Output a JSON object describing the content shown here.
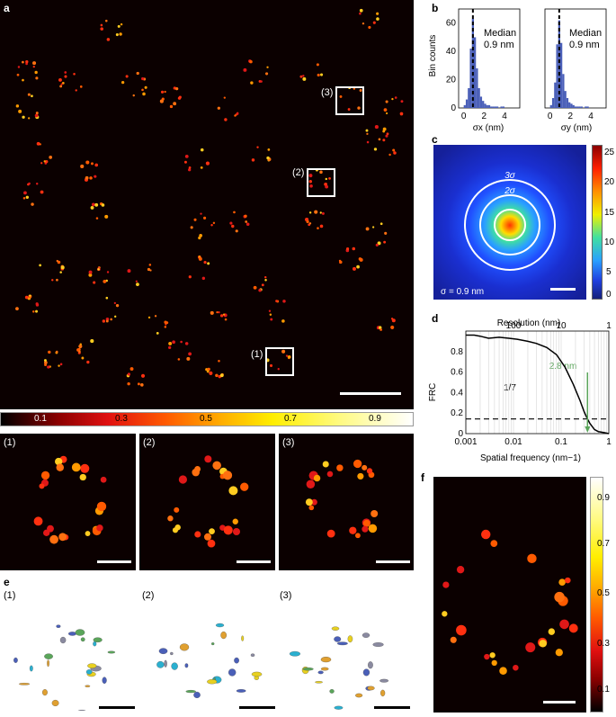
{
  "panel_labels": {
    "a": "a",
    "b": "b",
    "c": "c",
    "d": "d",
    "e": "e",
    "f": "f"
  },
  "panel_a": {
    "roi_labels": [
      "(3)",
      "(2)",
      "(1)"
    ]
  },
  "colorbar_a": {
    "ticks": [
      "0.1",
      "0.3",
      "0.5",
      "0.7",
      "0.9"
    ]
  },
  "zooms": {
    "labels": [
      "(1)",
      "(2)",
      "(3)"
    ]
  },
  "panel_e": {
    "labels": [
      "(1)",
      "(2)",
      "(3)"
    ]
  },
  "panel_b": {
    "ylabel": "Bin counts",
    "yticks": [
      "0",
      "20",
      "40",
      "60"
    ],
    "xticks": [
      "0",
      "2",
      "4"
    ],
    "left": {
      "xlabel": "σx (nm)",
      "annotation_title": "Median",
      "annotation_value": "0.9 nm"
    },
    "right": {
      "xlabel": "σy (nm)",
      "annotation_title": "Median",
      "annotation_value": "0.9 nm"
    }
  },
  "panel_c": {
    "ring_labels": [
      "3σ",
      "2σ"
    ],
    "sigma_text": "σ = 0.9 nm",
    "colorbar_ticks": [
      "25",
      "20",
      "15",
      "10",
      "5",
      "0"
    ]
  },
  "panel_f": {
    "colorbar_ticks": [
      "0.9",
      "0.7",
      "0.5",
      "0.3",
      "0.1"
    ]
  },
  "chart_data": [
    {
      "type": "bar",
      "panel": "b-left",
      "xlabel": "σx (nm)",
      "ylabel": "Bin counts",
      "xlim": [
        -0.5,
        5.5
      ],
      "ylim": [
        0,
        70
      ],
      "bin_width": 0.2,
      "x": [
        0.1,
        0.3,
        0.5,
        0.7,
        0.9,
        1.1,
        1.3,
        1.5,
        1.7,
        1.9,
        2.1,
        2.3,
        2.5,
        2.7,
        2.9,
        3.1,
        3.3,
        3.5,
        3.7,
        3.9
      ],
      "values": [
        2,
        6,
        14,
        42,
        63,
        50,
        28,
        14,
        8,
        5,
        3,
        2,
        2,
        1,
        1,
        1,
        1,
        0,
        1,
        1
      ],
      "median_line": 0.9
    },
    {
      "type": "bar",
      "panel": "b-right",
      "xlabel": "σy (nm)",
      "xlim": [
        -0.5,
        5.5
      ],
      "ylim": [
        0,
        70
      ],
      "bin_width": 0.2,
      "x": [
        0.1,
        0.3,
        0.5,
        0.7,
        0.9,
        1.1,
        1.3,
        1.5,
        1.7,
        1.9,
        2.1,
        2.3,
        2.5,
        2.7,
        2.9,
        3.1,
        3.3,
        3.5,
        3.7,
        3.9
      ],
      "values": [
        2,
        7,
        18,
        45,
        62,
        46,
        24,
        12,
        7,
        4,
        3,
        2,
        1,
        1,
        1,
        1,
        0,
        1,
        1,
        0
      ],
      "median_line": 0.9
    },
    {
      "type": "line",
      "panel": "d",
      "xlabel": "Spatial frequency (nm−1)",
      "ylabel": "FRC",
      "top_axis_label": "Resolution (nm)",
      "x_scale": "log",
      "xlim": [
        0.001,
        1
      ],
      "ylim": [
        0,
        1
      ],
      "xticks": [
        "0.001",
        "0.01",
        "0.1",
        "1"
      ],
      "yticks": [
        "0",
        "0.2",
        "0.4",
        "0.6",
        "0.8"
      ],
      "top_ticks": [
        "100",
        "10",
        "1"
      ],
      "threshold_label": "1/7",
      "threshold": 0.143,
      "resolution_annotation": "2.8 nm",
      "resolution_frequency": 0.357,
      "x": [
        0.001,
        0.0015,
        0.002,
        0.003,
        0.005,
        0.008,
        0.012,
        0.02,
        0.03,
        0.05,
        0.08,
        0.12,
        0.18,
        0.25,
        0.3,
        0.35,
        0.4,
        0.5,
        0.6,
        0.8,
        1.0
      ],
      "y": [
        0.96,
        0.96,
        0.95,
        0.93,
        0.94,
        0.93,
        0.92,
        0.9,
        0.88,
        0.84,
        0.77,
        0.65,
        0.48,
        0.32,
        0.22,
        0.15,
        0.1,
        0.04,
        0.02,
        0.01,
        0.0
      ]
    }
  ],
  "colors": {
    "accent_green": "#5aa55a",
    "histogram_blue": "#4a5fb8",
    "frame": "#ffffff"
  }
}
